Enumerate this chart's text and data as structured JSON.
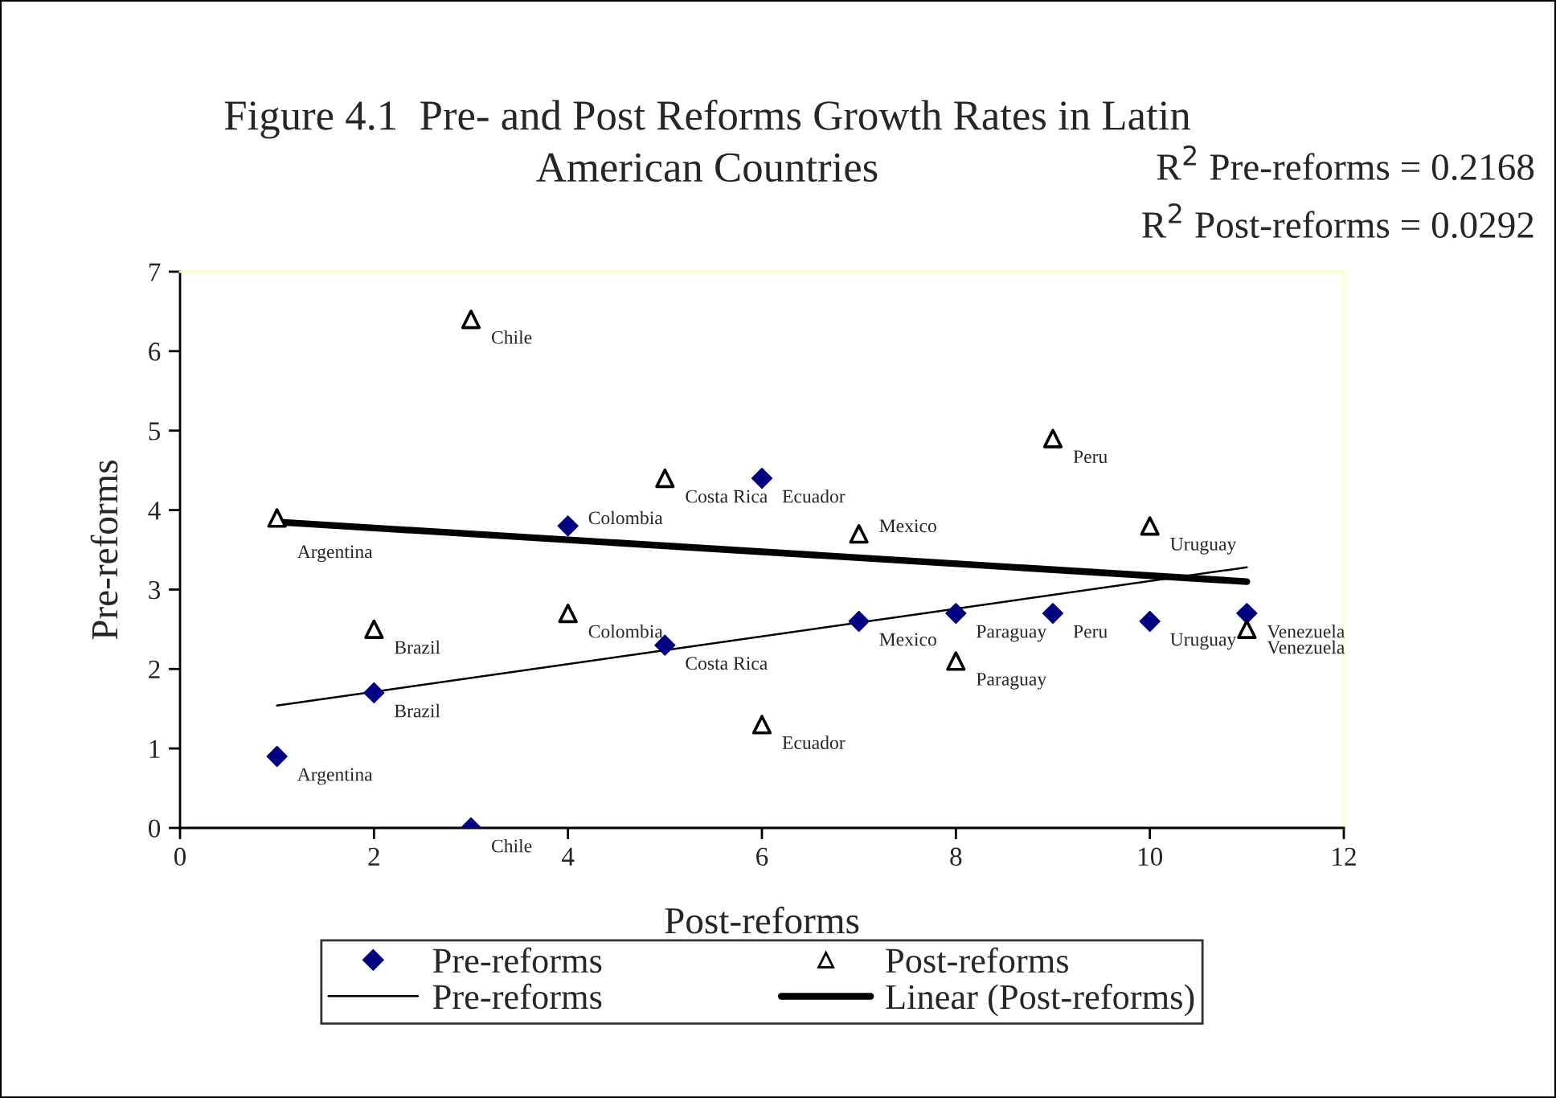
{
  "chart_data": {
    "type": "scatter",
    "title": "Figure 4.1  Pre- and Post Reforms Growth Rates in Latin\nAmerican Countries",
    "xlabel": "Post-reforms",
    "ylabel": "Pre-reforms",
    "xlim": [
      0,
      12
    ],
    "xticks": [
      0,
      2,
      4,
      6,
      8,
      10,
      12
    ],
    "ylim": [
      0,
      7
    ],
    "yticks": [
      0,
      1,
      2,
      3,
      4,
      5,
      6,
      7
    ],
    "grid": false,
    "legend": "bottom",
    "series": [
      {
        "name": "Pre-reforms",
        "type": "scatter",
        "marker": "diamond",
        "color": "#000080",
        "x": [
          1,
          2,
          3,
          4,
          5,
          6,
          7,
          8,
          9,
          10,
          11
        ],
        "values": [
          0.9,
          1.7,
          0.0,
          3.8,
          2.3,
          4.4,
          2.6,
          2.7,
          2.7,
          2.6,
          2.7
        ]
      },
      {
        "name": "Post-reforms",
        "type": "scatter",
        "marker": "triangle",
        "color": "#000000",
        "x": [
          1,
          2,
          3,
          4,
          5,
          6,
          7,
          8,
          9,
          10,
          11
        ],
        "values": [
          3.9,
          2.5,
          6.4,
          2.7,
          4.4,
          1.3,
          3.7,
          2.1,
          4.9,
          3.8,
          2.5
        ]
      },
      {
        "name": "Pre-reforms",
        "type": "line",
        "color": "#000000",
        "line_style": "solid",
        "x": [
          1,
          11
        ],
        "values": [
          1.54,
          3.28
        ]
      },
      {
        "name": "Linear (Post-reforms)",
        "type": "line",
        "color": "#000000",
        "line_style": "solid",
        "x": [
          1,
          11
        ],
        "values": [
          3.85,
          3.1
        ]
      }
    ],
    "annotations": [
      "R$^{2}$ Pre-reforms = 0.2168",
      "R$^{2}$ Post-reforms = 0.0292",
      {
        "text": "Argentina",
        "x": 1,
        "y": 0.9
      },
      {
        "text": "Brazil",
        "x": 2,
        "y": 1.7
      },
      {
        "text": "Chile",
        "x": 3,
        "y": 0.0
      },
      {
        "text": "Colombia",
        "x": 4,
        "y": 3.8
      },
      {
        "text": "Costa Rica",
        "x": 5,
        "y": 2.3
      },
      {
        "text": "Ecuador",
        "x": 6,
        "y": 4.4
      },
      {
        "text": "Mexico",
        "x": 7,
        "y": 2.6
      },
      {
        "text": "Paraguay",
        "x": 8,
        "y": 2.7
      },
      {
        "text": "Peru",
        "x": 9,
        "y": 2.7
      },
      {
        "text": "Uruguay",
        "x": 10,
        "y": 2.6
      },
      {
        "text": "Venezuela",
        "x": 11,
        "y": 2.7
      },
      {
        "text": "Argentina",
        "x": 1,
        "y": 3.9
      },
      {
        "text": "Brazil",
        "x": 2,
        "y": 2.5
      },
      {
        "text": "Chile",
        "x": 3,
        "y": 6.4
      },
      {
        "text": "Colombia",
        "x": 4,
        "y": 2.7
      },
      {
        "text": "Costa Rica",
        "x": 5,
        "y": 4.4
      },
      {
        "text": "Ecuador",
        "x": 6,
        "y": 1.3
      },
      {
        "text": "Mexico",
        "x": 7,
        "y": 3.7
      },
      {
        "text": "Paraguay",
        "x": 8,
        "y": 2.1
      },
      {
        "text": "Peru",
        "x": 9,
        "y": 4.9
      },
      {
        "text": "Uruguay",
        "x": 10,
        "y": 3.8
      },
      {
        "text": "Venezuela",
        "x": 11,
        "y": 2.5
      }
    ]
  }
}
